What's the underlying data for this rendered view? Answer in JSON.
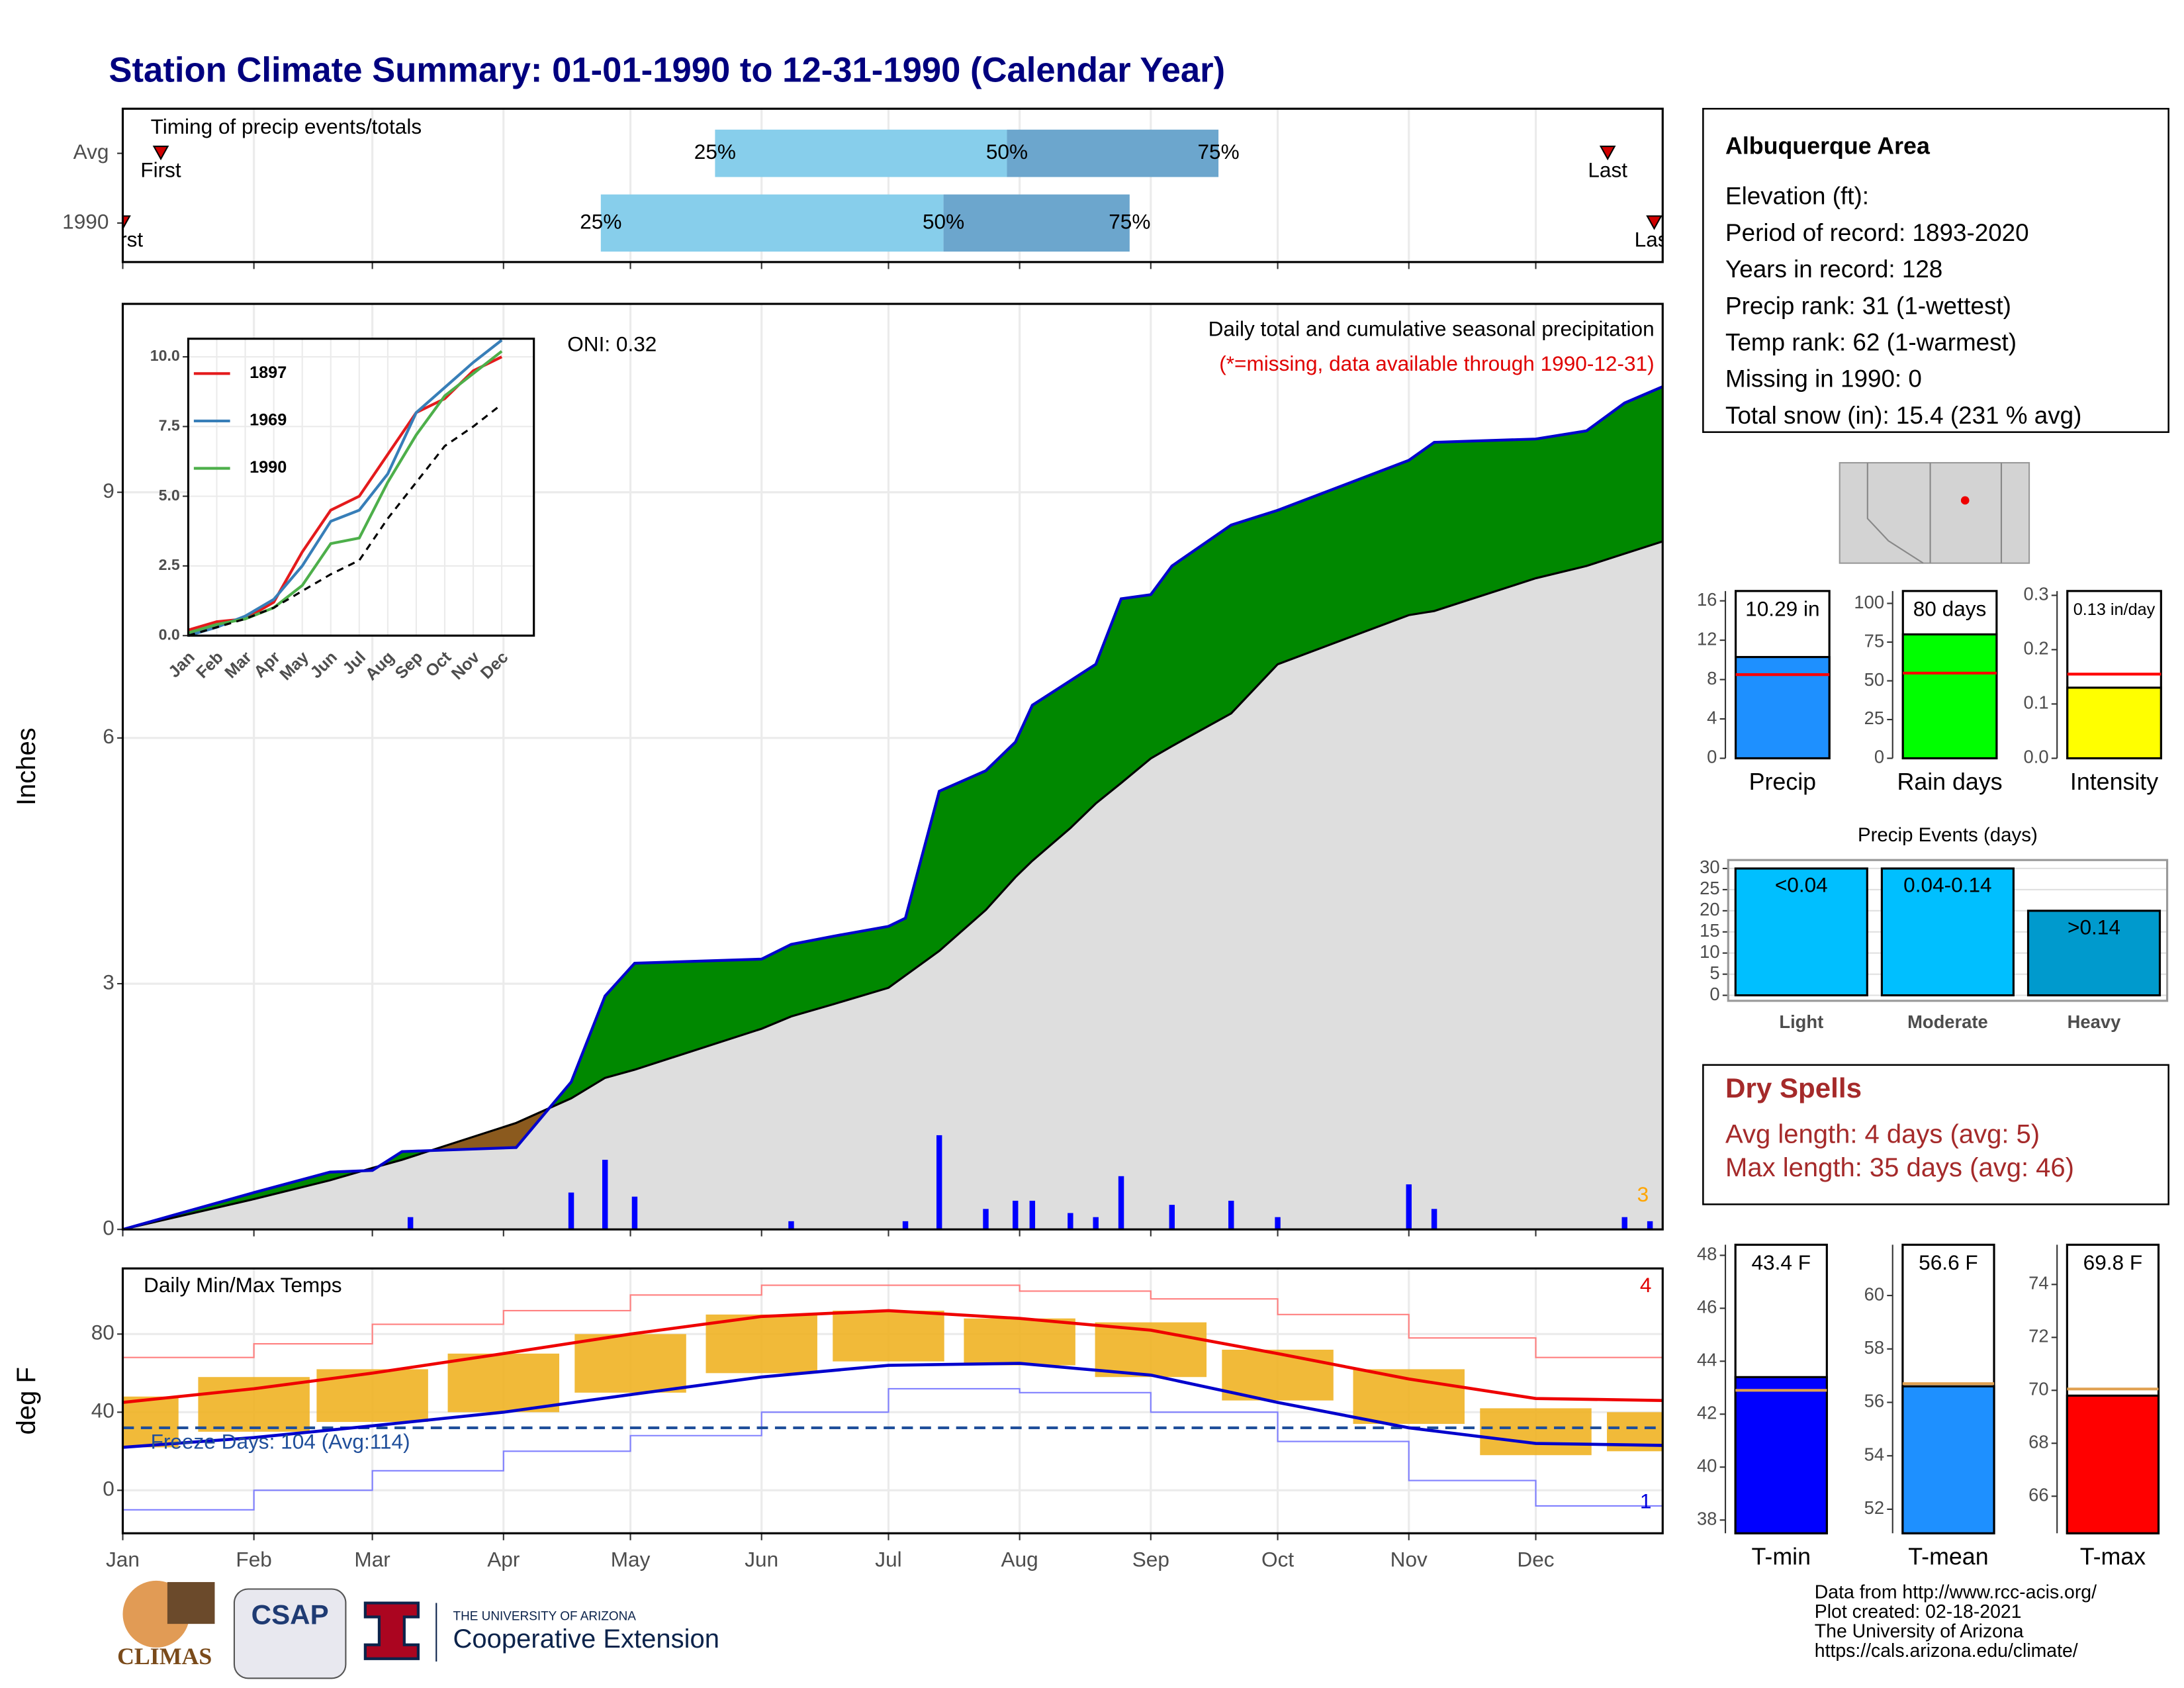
{
  "title": "Station Climate Summary: 01-01-1990 to 12-31-1990 (Calendar Year)",
  "chart_data": [
    {
      "type": "range",
      "title": "Timing of precip events/totals",
      "categories": [
        "Avg",
        "1990"
      ],
      "first": [
        10,
        1
      ],
      "q25": [
        141,
        114
      ],
      "q50": [
        210,
        195
      ],
      "q75": [
        260,
        239
      ],
      "last": [
        352,
        363
      ],
      "first_label": "First",
      "last_label": "Last",
      "quantile_labels": [
        "25%",
        "50%",
        "75%"
      ],
      "xlim": [
        1,
        365
      ],
      "colors": [
        "#87ceeb",
        "#6ca6cd"
      ],
      "marker_color": "#d00000",
      "grid": true
    },
    {
      "type": "area",
      "ylabel": "Inches",
      "note": "Daily total and cumulative seasonal precipitation",
      "note2": "(*=missing, data available through 1990-12-31)",
      "oni": "ONI: 0.32",
      "annotation": "3",
      "xlim": [
        1,
        365
      ],
      "ylim": [
        0,
        11.3
      ],
      "yticks": [
        0,
        3,
        6,
        9
      ],
      "grid": true,
      "x": [
        1,
        32,
        50,
        60,
        67,
        94,
        107,
        115,
        122,
        152,
        159,
        169,
        182,
        186,
        194,
        205,
        212,
        216,
        225,
        231,
        237,
        244,
        249,
        263,
        274,
        305,
        311,
        335,
        347,
        356,
        365
      ],
      "series": [
        {
          "color": "#0000cd",
          "values": [
            0,
            0.45,
            0.7,
            0.72,
            0.95,
            1.0,
            1.8,
            2.85,
            3.25,
            3.3,
            3.48,
            3.58,
            3.7,
            3.8,
            5.35,
            5.6,
            5.95,
            6.4,
            6.7,
            6.9,
            7.7,
            7.75,
            8.1,
            8.6,
            8.78,
            9.39,
            9.61,
            9.65,
            9.75,
            10.09,
            10.29
          ]
        },
        {
          "color": "#000000",
          "values": [
            0,
            0.37,
            0.6,
            0.75,
            0.85,
            1.3,
            1.6,
            1.85,
            1.95,
            2.45,
            2.6,
            2.75,
            2.95,
            3.1,
            3.4,
            3.9,
            4.3,
            4.5,
            4.9,
            5.2,
            5.45,
            5.75,
            5.9,
            6.3,
            6.9,
            7.5,
            7.55,
            7.95,
            8.1,
            8.25,
            8.4
          ]
        }
      ],
      "fill_above": "#008800",
      "fill_below": "#8b5a1e",
      "fill_base": "#dedede",
      "daily_x": [
        69,
        107,
        115,
        122,
        159,
        186,
        194,
        205,
        212,
        216,
        225,
        231,
        237,
        249,
        263,
        274,
        305,
        311,
        356,
        362
      ],
      "daily_values": [
        0.15,
        0.45,
        0.85,
        0.4,
        0.1,
        0.1,
        1.15,
        0.25,
        0.35,
        0.35,
        0.2,
        0.15,
        0.65,
        0.3,
        0.35,
        0.15,
        0.55,
        0.25,
        0.15,
        0.1
      ],
      "daily_color": "#0000ff",
      "annotation_color": "#ffa500"
    },
    {
      "type": "line",
      "categories": [
        "Jan",
        "Feb",
        "Mar",
        "Apr",
        "May",
        "Jun",
        "Jul",
        "Aug",
        "Sep",
        "Oct",
        "Nov",
        "Dec"
      ],
      "ylim": [
        0,
        10.65
      ],
      "yticks": [
        {
          "value": 0,
          "label": "0.0"
        },
        {
          "value": 2.5,
          "label": "2.5"
        },
        {
          "value": 5,
          "label": "5.0"
        },
        {
          "value": 7.5,
          "label": "7.5"
        },
        {
          "value": 10,
          "label": "10.0"
        }
      ],
      "grid": true,
      "series": [
        {
          "name": "1897",
          "color": "#e41a1c",
          "values": [
            0.2,
            0.5,
            0.6,
            1.2,
            3.0,
            4.5,
            5.0,
            6.5,
            8.0,
            8.5,
            9.5,
            10.0
          ]
        },
        {
          "name": "1969",
          "color": "#377eb8",
          "values": [
            0,
            0.3,
            0.7,
            1.3,
            2.5,
            4.1,
            4.5,
            5.8,
            8.0,
            8.9,
            9.8,
            10.6
          ]
        },
        {
          "name": "1990",
          "color": "#4daf4a",
          "values": [
            0.1,
            0.4,
            0.6,
            1.0,
            1.8,
            3.3,
            3.5,
            5.5,
            7.2,
            8.6,
            9.4,
            10.2
          ]
        },
        {
          "color": "#000000",
          "dash": true,
          "values": [
            0,
            0.3,
            0.6,
            1.0,
            1.6,
            2.2,
            2.7,
            4.2,
            5.5,
            6.8,
            7.5,
            8.3
          ]
        }
      ]
    },
    {
      "type": "bar",
      "categories": [
        "Precip"
      ],
      "values": [
        10.29
      ],
      "value_labels": [
        "10.29 in"
      ],
      "reference": 8.5,
      "color": "#1e90ff",
      "reference_color": "#ff0000",
      "ylim": [
        0,
        17
      ],
      "yticks": [
        0,
        4,
        8,
        12,
        16
      ]
    },
    {
      "type": "bar",
      "categories": [
        "Rain days"
      ],
      "values": [
        80
      ],
      "value_labels": [
        "80 days"
      ],
      "reference": 55,
      "color": "#00ff00",
      "reference_color": "#ff0000",
      "ylim": [
        0,
        108
      ],
      "yticks": [
        0,
        25,
        50,
        75,
        100
      ]
    },
    {
      "type": "bar",
      "categories": [
        "Intensity"
      ],
      "values": [
        0.13
      ],
      "value_labels": [
        "0.13 in/day"
      ],
      "reference": 0.155,
      "color": "#ffff00",
      "reference_color": "#ff0000",
      "ylim": [
        0,
        0.308
      ],
      "yticks": [
        {
          "value": 0,
          "label": "0.0"
        },
        0.1,
        0.2,
        0.3
      ]
    },
    {
      "type": "bar",
      "title": "Precip Events (days)",
      "categories": [
        "Light",
        "Moderate",
        "Heavy"
      ],
      "values": [
        30,
        30,
        20
      ],
      "bin_labels": [
        "<0.04",
        "0.04-0.14",
        ">0.14"
      ],
      "colors": [
        "#00bfff",
        "#00bfff",
        "#009acd"
      ],
      "ylim": [
        -1.3,
        32
      ],
      "yticks": [
        0,
        5,
        10,
        15,
        20,
        25,
        30
      ],
      "grid": true
    },
    {
      "type": "bar",
      "categories": [
        "T-min"
      ],
      "values": [
        43.4
      ],
      "value_labels": [
        "43.4 F"
      ],
      "reference": 42.9,
      "color": "#0000ff",
      "reference_color": "#e0a050",
      "ylim": [
        37.5,
        48.4
      ],
      "yticks": [
        38,
        40,
        42,
        44,
        46,
        48
      ]
    },
    {
      "type": "bar",
      "categories": [
        "T-mean"
      ],
      "values": [
        56.6
      ],
      "value_labels": [
        "56.6 F"
      ],
      "reference": 56.7,
      "color": "#1e90ff",
      "reference_color": "#e0a050",
      "ylim": [
        51.1,
        61.9
      ],
      "yticks": [
        52,
        54,
        56,
        58,
        60
      ]
    },
    {
      "type": "bar",
      "categories": [
        "T-max"
      ],
      "values": [
        69.8
      ],
      "value_labels": [
        "69.8 F"
      ],
      "reference": 70.05,
      "color": "#ff0000",
      "reference_color": "#e0a050",
      "ylim": [
        64.6,
        75.5
      ],
      "yticks": [
        66,
        68,
        70,
        72,
        74
      ]
    },
    {
      "type": "temperature",
      "title": "Daily Min/Max Temps",
      "ylabel": "deg F",
      "freeze_label": "Freeze Days: 104 (Avg:114)",
      "freeze_line": 32,
      "freeze_color": "#1f4e9a",
      "annotations": [
        {
          "text": "4",
          "color": "#e00000"
        },
        {
          "text": "1",
          "color": "#0000dd"
        }
      ],
      "xlim": [
        1,
        365
      ],
      "ylim": [
        -22,
        113.6
      ],
      "yticks": [
        0,
        40,
        80
      ],
      "grid": true,
      "xticks": [
        {
          "value": 1,
          "label": "Jan"
        },
        {
          "value": 32,
          "label": "Feb"
        },
        {
          "value": 60,
          "label": "Mar"
        },
        {
          "value": 91,
          "label": "Apr"
        },
        {
          "value": 121,
          "label": "May"
        },
        {
          "value": 152,
          "label": "Jun"
        },
        {
          "value": 182,
          "label": "Jul"
        },
        {
          "value": 213,
          "label": "Aug"
        },
        {
          "value": 244,
          "label": "Sep"
        },
        {
          "value": 274,
          "label": "Oct"
        },
        {
          "value": 305,
          "label": "Nov"
        },
        {
          "value": 335,
          "label": "Dec"
        }
      ],
      "x": [
        1,
        32,
        60,
        91,
        121,
        152,
        182,
        213,
        244,
        274,
        305,
        335,
        365
      ],
      "obs_max": {
        "color": "#f0b323",
        "values": [
          48,
          58,
          62,
          70,
          80,
          90,
          92,
          88,
          86,
          72,
          62,
          42,
          40
        ]
      },
      "obs_min": {
        "color": "#f0b323",
        "values": [
          22,
          30,
          35,
          40,
          50,
          60,
          66,
          64,
          58,
          46,
          34,
          18,
          20
        ]
      },
      "normal_max": {
        "color": "#ee0000",
        "values": [
          45,
          52,
          60,
          70,
          80,
          89,
          92,
          88,
          82,
          70,
          57,
          47,
          46
        ]
      },
      "normal_min": {
        "color": "#0000cc",
        "values": [
          22,
          27,
          33,
          40,
          49,
          58,
          64,
          65,
          59,
          45,
          32,
          24,
          23
        ]
      },
      "record_max": {
        "color": "#ff8080",
        "values": [
          68,
          75,
          85,
          92,
          100,
          105,
          105,
          102,
          98,
          90,
          78,
          68,
          68
        ]
      },
      "record_min": {
        "color": "#8080ff",
        "values": [
          -10,
          0,
          10,
          20,
          28,
          40,
          52,
          50,
          40,
          25,
          5,
          -8,
          -10
        ]
      }
    }
  ],
  "info": {
    "title": "Albuquerque Area",
    "lines": [
      "Elevation (ft):",
      "Period of record: 1893-2020",
      "Years in record: 128",
      "Precip rank: 31 (1-wettest)",
      "Temp rank: 62 (1-warmest)",
      "Missing in 1990: 0",
      "Total snow (in): 15.4 (231 % avg)"
    ]
  },
  "dry_spells": {
    "title": "Dry Spells",
    "lines": [
      "Avg length: 4 days (avg: 5)",
      "Max length: 35 days (avg: 46)"
    ]
  },
  "footer": {
    "logos": [
      "CLIMAS",
      "CSAP",
      "THE UNIVERSITY OF ARIZONA",
      "Cooperative Extension"
    ],
    "lines": [
      "Data from http://www.rcc-acis.org/",
      "Plot created: 02-18-2021",
      "The University of Arizona",
      "https://cals.arizona.edu/climate/"
    ]
  }
}
